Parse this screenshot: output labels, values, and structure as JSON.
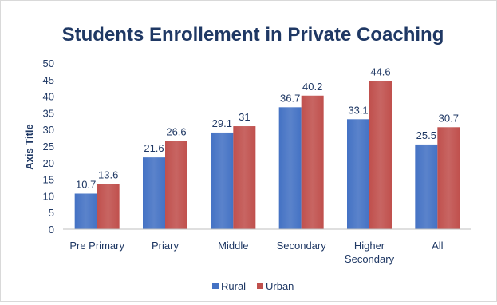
{
  "chart_data": {
    "type": "bar",
    "title": "Students Enrollement in Private Coaching",
    "xlabel": "",
    "ylabel": "Axis Title",
    "ylim": [
      0,
      50
    ],
    "yticks": [
      0,
      5,
      10,
      15,
      20,
      25,
      30,
      35,
      40,
      45,
      50
    ],
    "categories": [
      "Pre Primary",
      "Priary",
      "Middle",
      "Secondary",
      "Higher Secondary",
      "All"
    ],
    "series": [
      {
        "name": "Rural",
        "color": "#4472c4",
        "values": [
          10.7,
          21.6,
          29.1,
          36.7,
          33.1,
          25.5
        ],
        "labels": [
          "10.7",
          "21.6",
          "29.1",
          "36.7",
          "33.1",
          "25.5"
        ]
      },
      {
        "name": "Urban",
        "color": "#c0504d",
        "values": [
          13.6,
          26.6,
          31,
          40.2,
          44.6,
          30.7
        ],
        "labels": [
          "13.6",
          "26.6",
          "31",
          "40.2",
          "44.6",
          "30.7"
        ]
      }
    ],
    "grid": false,
    "legend": "bottom"
  }
}
